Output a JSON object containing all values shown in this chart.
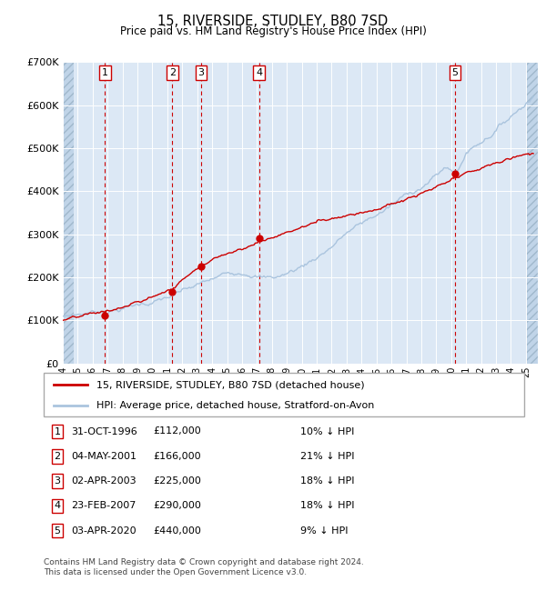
{
  "title": "15, RIVERSIDE, STUDLEY, B80 7SD",
  "subtitle": "Price paid vs. HM Land Registry's House Price Index (HPI)",
  "footer1": "Contains HM Land Registry data © Crown copyright and database right 2024.",
  "footer2": "This data is licensed under the Open Government Licence v3.0.",
  "legend1": "15, RIVERSIDE, STUDLEY, B80 7SD (detached house)",
  "legend2": "HPI: Average price, detached house, Stratford-on-Avon",
  "hpi_color": "#aac4de",
  "price_color": "#cc0000",
  "dot_color": "#cc0000",
  "vline_color": "#cc0000",
  "background_plot": "#dce8f5",
  "ylim": [
    0,
    700000
  ],
  "yticks": [
    0,
    100000,
    200000,
    300000,
    400000,
    500000,
    600000,
    700000
  ],
  "xlim_start": 1994.0,
  "xlim_end": 2025.8,
  "sales": [
    {
      "num": 1,
      "date": "31-OCT-1996",
      "year": 1996.83,
      "price": 112000,
      "hpi_pct": "10% ↓ HPI"
    },
    {
      "num": 2,
      "date": "04-MAY-2001",
      "year": 2001.34,
      "price": 166000,
      "hpi_pct": "21% ↓ HPI"
    },
    {
      "num": 3,
      "date": "02-APR-2003",
      "year": 2003.25,
      "price": 225000,
      "hpi_pct": "18% ↓ HPI"
    },
    {
      "num": 4,
      "date": "23-FEB-2007",
      "year": 2007.14,
      "price": 290000,
      "hpi_pct": "18% ↓ HPI"
    },
    {
      "num": 5,
      "date": "03-APR-2020",
      "year": 2020.25,
      "price": 440000,
      "hpi_pct": "9% ↓ HPI"
    }
  ]
}
